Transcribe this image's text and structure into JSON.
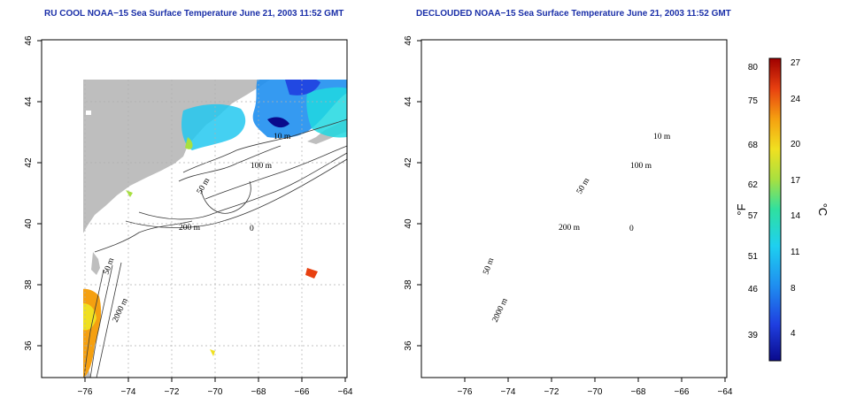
{
  "panels": [
    {
      "id": "p1",
      "title": "RU COOL NOAA−15 Sea Surface Temperature June 21, 2003 11:52 GMT",
      "mode": "full"
    },
    {
      "id": "p2",
      "title": "DECLOUDED NOAA−15 Sea Surface Temperature June 21, 2003 11:52 GMT",
      "mode": "declouded"
    }
  ],
  "axes": {
    "x_ticks": [
      "−76",
      "−74",
      "−72",
      "−70",
      "−68",
      "−66",
      "−64"
    ],
    "y_ticks": [
      "36",
      "38",
      "40",
      "42",
      "44",
      "46"
    ]
  },
  "contour_labels": {
    "m10": "10 m",
    "m100": "100 m",
    "m50": "50 m",
    "m200": "200 m",
    "m0": "0",
    "m50s": "50 m",
    "m2000": "2000 m"
  },
  "colorbar": {
    "fahrenheit_unit": "°F",
    "celsius_unit": "°C",
    "fahrenheit_ticks": [
      "80",
      "75",
      "68",
      "62",
      "57",
      "51",
      "46",
      "39"
    ],
    "celsius_ticks": [
      "27",
      "24",
      "20",
      "17",
      "14",
      "11",
      "8",
      "4"
    ]
  },
  "colors": {
    "land": "#bebebe",
    "ocean": "#ffffff",
    "title": "#1a2fa8",
    "grid": "#b0b0b0"
  }
}
